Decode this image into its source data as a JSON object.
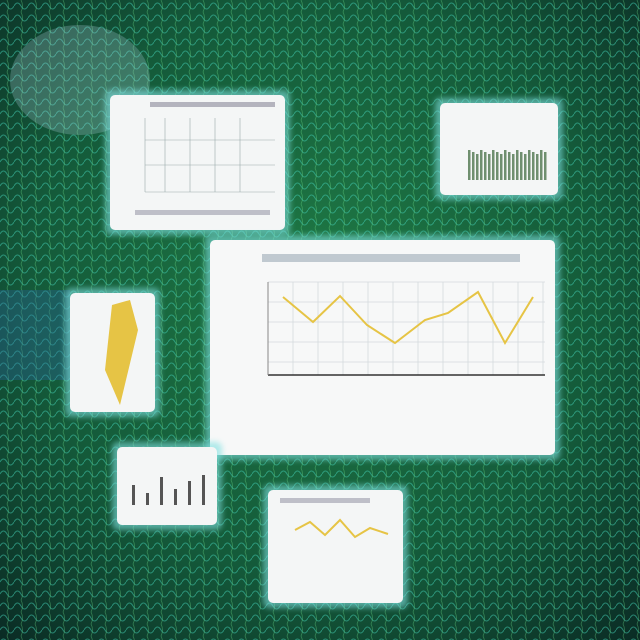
{
  "scene": {
    "line_color": "#e6c445",
    "bar_color": "#6f8f6f"
  }
}
